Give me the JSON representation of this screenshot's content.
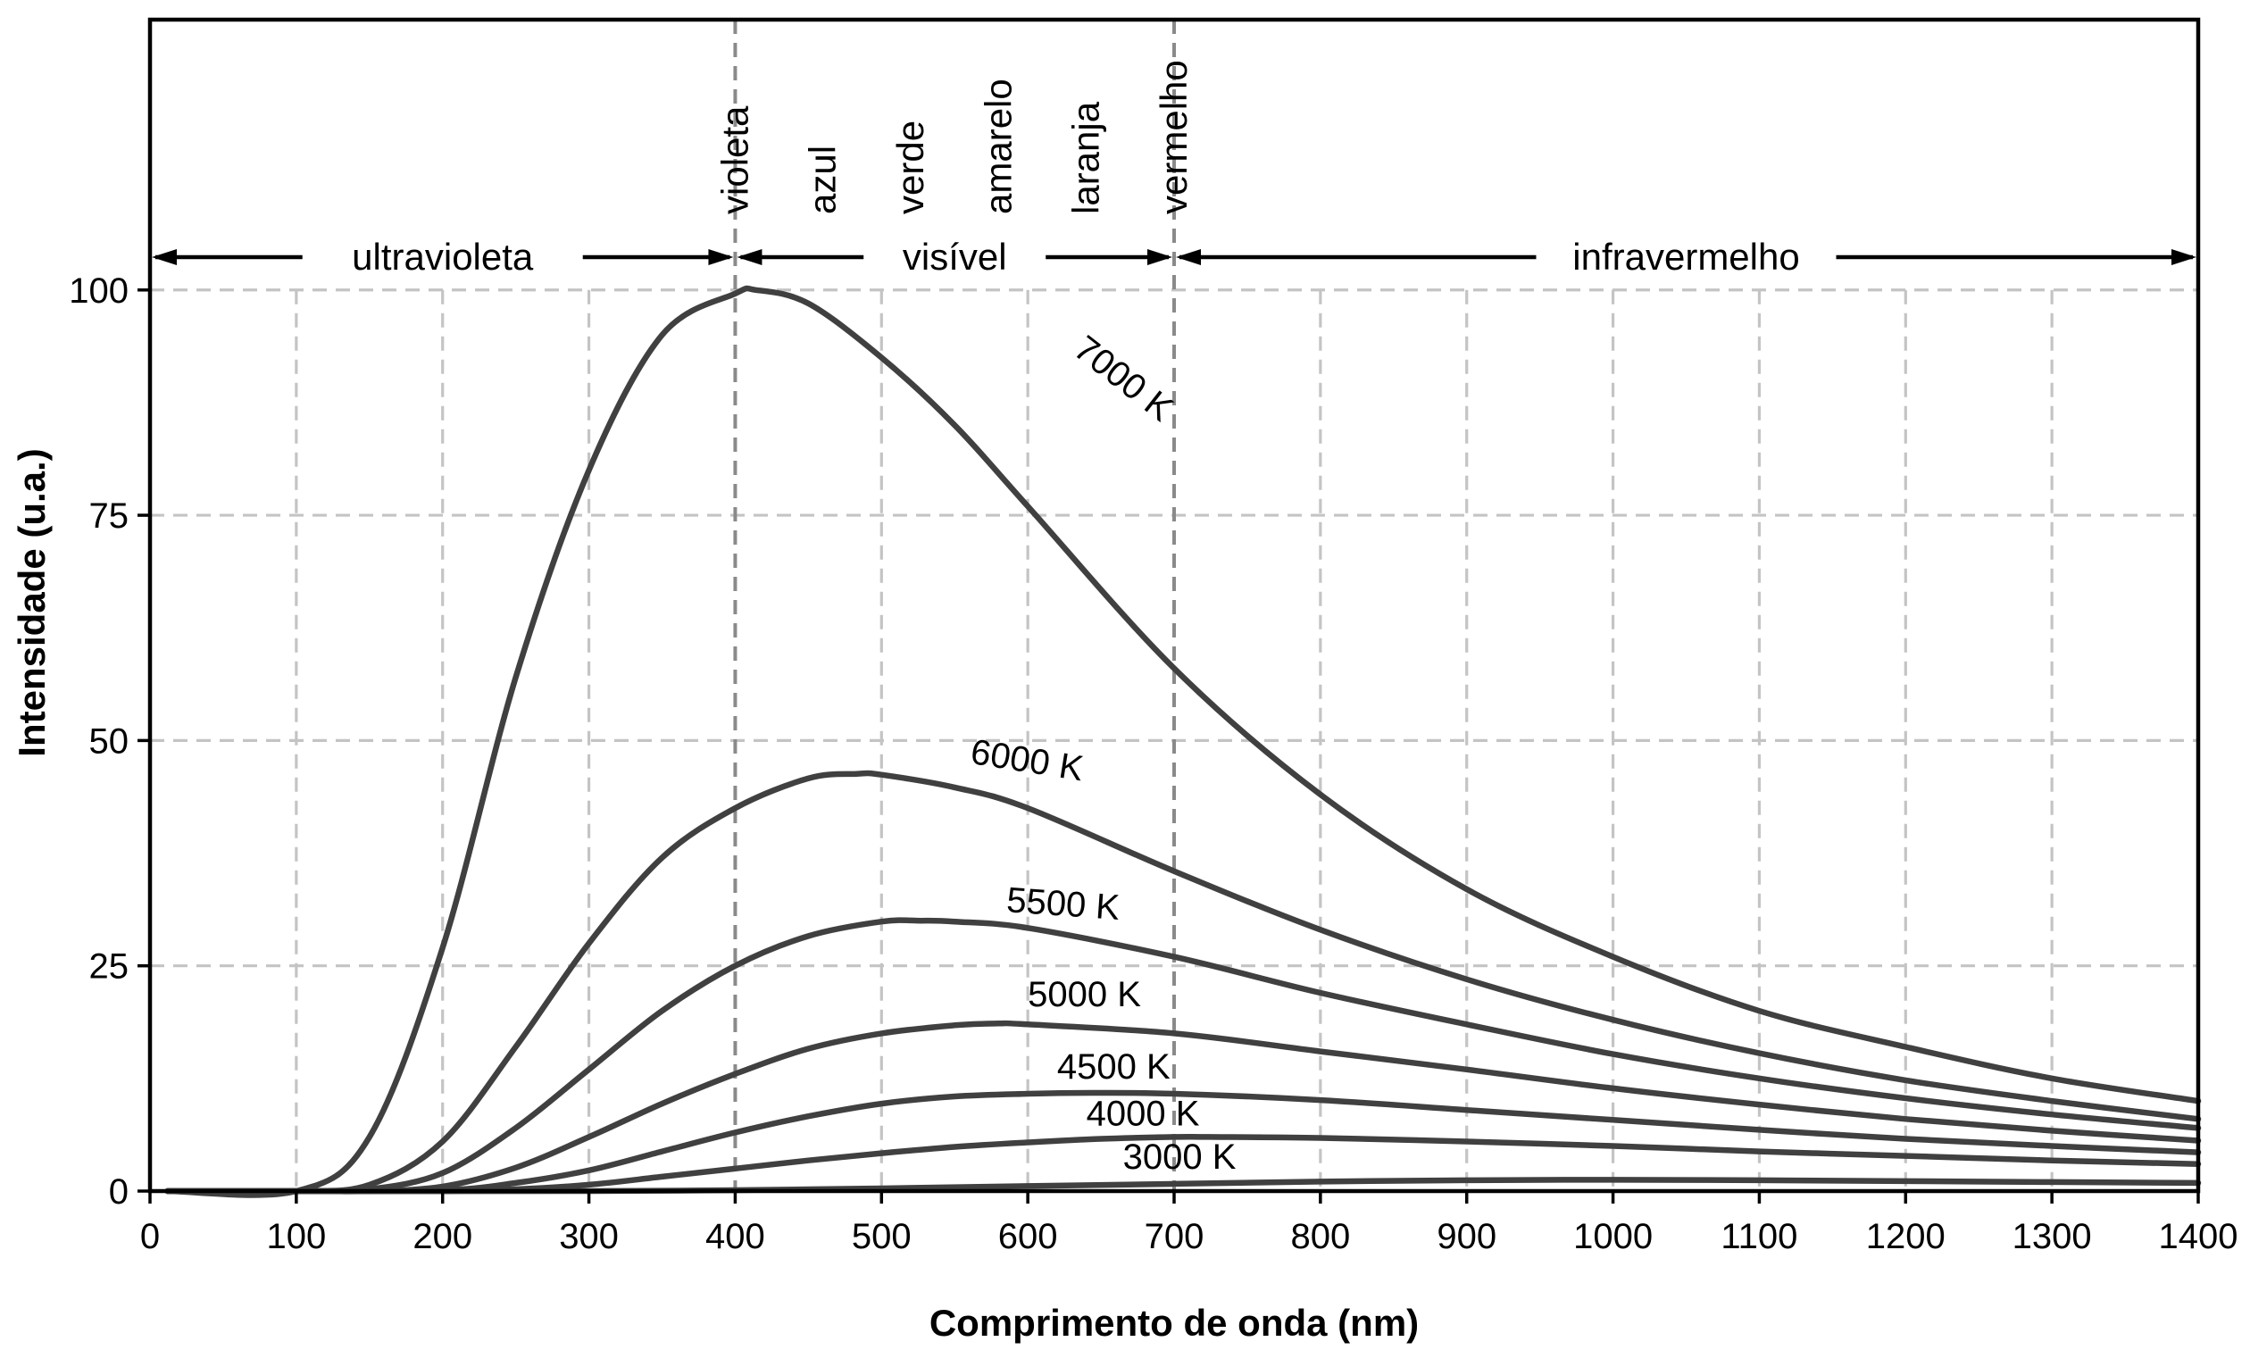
{
  "chart_data": {
    "type": "line",
    "xlabel": "Comprimento de onda (nm)",
    "ylabel": "Intensidade (u.a.)",
    "xlim": [
      0,
      1400
    ],
    "ylim": [
      0,
      100
    ],
    "yplot_max": 130,
    "xticks": [
      0,
      100,
      200,
      300,
      400,
      500,
      600,
      700,
      800,
      900,
      1000,
      1100,
      1200,
      1300,
      1400
    ],
    "yticks": [
      0,
      25,
      50,
      75,
      100
    ],
    "grid": true,
    "regions": [
      {
        "label": "ultravioleta",
        "from": 0,
        "to": 400
      },
      {
        "label": "visível",
        "from": 400,
        "to": 700
      },
      {
        "label": "infravermelho",
        "from": 700,
        "to": 1400
      }
    ],
    "region_boundaries": [
      400,
      700
    ],
    "color_bands": [
      {
        "label": "violeta",
        "x": 400
      },
      {
        "label": "azul",
        "x": 460
      },
      {
        "label": "verde",
        "x": 520
      },
      {
        "label": "amarelo",
        "x": 580
      },
      {
        "label": "laranja",
        "x": 640
      },
      {
        "label": "vermelho",
        "x": 700
      }
    ],
    "series": [
      {
        "label": "7000 K",
        "temperature": 7000,
        "peak_x": 414,
        "peak_y": 100,
        "x": [
          100,
          150,
          200,
          250,
          300,
          350,
          400,
          414,
          450,
          500,
          550,
          600,
          700,
          800,
          900,
          1000,
          1100,
          1200,
          1300,
          1400
        ],
        "y": [
          0,
          6,
          27,
          57,
          80,
          95,
          99.6,
          100,
          98.5,
          92.5,
          85,
          76,
          58,
          44,
          33.5,
          26,
          20,
          16,
          12.5,
          10
        ],
        "label_at": {
          "x": 630,
          "y": 93
        }
      },
      {
        "label": "6000 K",
        "temperature": 6000,
        "peak_x": 483,
        "peak_y": 46.3,
        "x": [
          100,
          150,
          200,
          250,
          300,
          350,
          400,
          450,
          483,
          500,
          550,
          600,
          700,
          800,
          900,
          1000,
          1100,
          1200,
          1300,
          1400
        ],
        "y": [
          0,
          0.7,
          5.5,
          16,
          27.5,
          37,
          42.5,
          45.8,
          46.3,
          46.2,
          44.8,
          42.5,
          35.5,
          29,
          23.5,
          19,
          15.3,
          12.3,
          10,
          8
        ],
        "label_at": {
          "x": 560,
          "y": 47.5
        }
      },
      {
        "label": "5500 K",
        "temperature": 5500,
        "peak_x": 527,
        "peak_y": 30,
        "x": [
          100,
          150,
          200,
          250,
          300,
          350,
          400,
          450,
          500,
          527,
          550,
          600,
          700,
          800,
          900,
          1000,
          1100,
          1200,
          1300,
          1400
        ],
        "y": [
          0,
          0.2,
          2,
          7,
          13.5,
          20,
          25,
          28.3,
          29.9,
          30,
          29.9,
          29.2,
          26,
          22,
          18.5,
          15.2,
          12.5,
          10.3,
          8.5,
          7
        ],
        "label_at": {
          "x": 585,
          "y": 31
        }
      },
      {
        "label": "5000 K",
        "temperature": 5000,
        "peak_x": 580,
        "peak_y": 18.6,
        "x": [
          100,
          150,
          200,
          250,
          300,
          350,
          400,
          450,
          500,
          550,
          580,
          600,
          700,
          800,
          900,
          1000,
          1100,
          1200,
          1300,
          1400
        ],
        "y": [
          0,
          0,
          0.5,
          2.6,
          6,
          9.7,
          13,
          15.8,
          17.5,
          18.4,
          18.6,
          18.5,
          17.5,
          15.5,
          13.5,
          11.4,
          9.6,
          8,
          6.7,
          5.6
        ],
        "label_at": {
          "x": 600,
          "y": 20.5
        }
      },
      {
        "label": "4500 K",
        "temperature": 4500,
        "peak_x": 644,
        "peak_y": 10.9,
        "x": [
          100,
          200,
          250,
          300,
          350,
          400,
          450,
          500,
          550,
          600,
          644,
          700,
          800,
          900,
          1000,
          1100,
          1200,
          1300,
          1400
        ],
        "y": [
          0,
          0.1,
          0.9,
          2.3,
          4.4,
          6.5,
          8.3,
          9.7,
          10.5,
          10.8,
          10.9,
          10.8,
          10.1,
          9,
          7.9,
          6.8,
          5.8,
          5,
          4.3
        ],
        "label_at": {
          "x": 620,
          "y": 12.5
        }
      },
      {
        "label": "4000 K",
        "temperature": 4000,
        "peak_x": 724,
        "peak_y": 6,
        "x": [
          100,
          200,
          250,
          300,
          350,
          400,
          450,
          500,
          550,
          600,
          650,
          700,
          724,
          800,
          900,
          1000,
          1100,
          1200,
          1300,
          1400
        ],
        "y": [
          0,
          0,
          0.2,
          0.7,
          1.6,
          2.5,
          3.4,
          4.2,
          4.9,
          5.4,
          5.8,
          6,
          6,
          5.9,
          5.5,
          5,
          4.4,
          3.9,
          3.4,
          3
        ],
        "label_at": {
          "x": 640,
          "y": 7.3
        }
      },
      {
        "label": "3000 K",
        "temperature": 3000,
        "peak_x": 966,
        "peak_y": 1.25,
        "x": [
          100,
          300,
          400,
          500,
          600,
          700,
          800,
          900,
          966,
          1000,
          1100,
          1200,
          1300,
          1400
        ],
        "y": [
          0,
          0,
          0.1,
          0.3,
          0.55,
          0.8,
          1.05,
          1.2,
          1.25,
          1.25,
          1.2,
          1.1,
          1,
          0.9
        ],
        "label_at": {
          "x": 665,
          "y": 2.5
        }
      }
    ]
  }
}
